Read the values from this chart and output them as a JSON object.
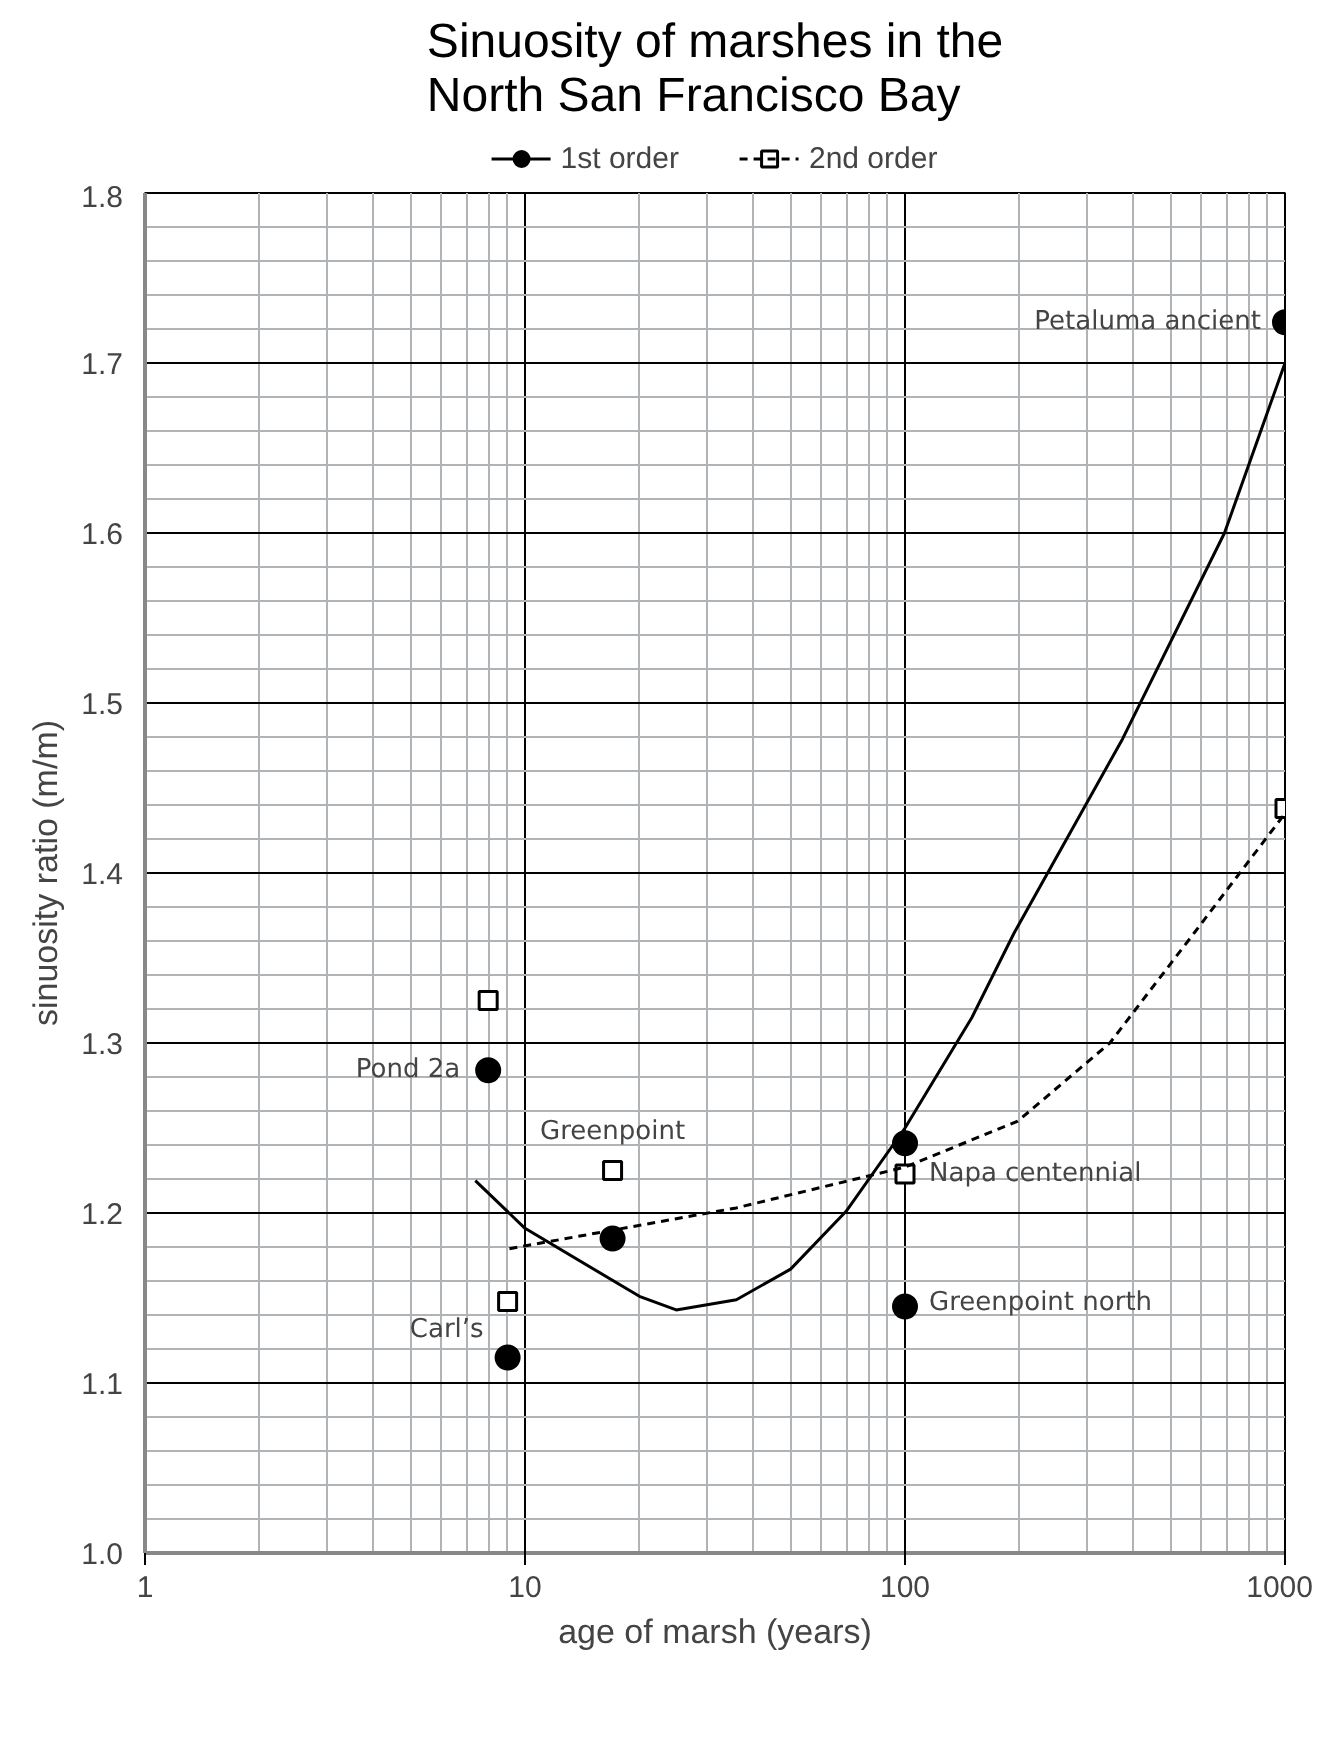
{
  "chart_data": {
    "type": "scatter",
    "title": "Sinuosity of marshes in the\nNorth San Francisco Bay",
    "xlabel": "age of marsh (years)",
    "ylabel": "sinuosity ratio (m/m)",
    "log": "x",
    "grid": true,
    "legend": "top",
    "xlim": [
      1,
      1000
    ],
    "xticks": [
      1,
      10,
      100,
      1000
    ],
    "ylim": [
      1.0,
      1.8
    ],
    "yticks": [
      {
        "value": 1.0,
        "label": "1.0"
      },
      1.1,
      1.2,
      1.3,
      1.4,
      1.5,
      1.6,
      1.7,
      1.8
    ],
    "series": [
      {
        "name": "1st order",
        "marker": "circle",
        "color": "#000000",
        "x": [
          8,
          9,
          17,
          100,
          100,
          1000
        ],
        "values": [
          1.284,
          1.115,
          1.185,
          1.241,
          1.145,
          1.724
        ]
      },
      {
        "name": "2nd order",
        "marker": "square",
        "color": "#000000",
        "x": [
          8,
          9,
          17,
          100,
          1000
        ],
        "values": [
          1.325,
          1.148,
          1.225,
          1.223,
          1.438
        ]
      },
      {
        "type": "line",
        "line_style": "solid",
        "color": "#000000",
        "x": [
          7.4,
          10,
          20,
          25,
          36,
          50,
          70,
          100,
          150,
          194,
          374,
          693,
          1000
        ],
        "values": [
          1.219,
          1.191,
          1.151,
          1.143,
          1.149,
          1.167,
          1.201,
          1.25,
          1.315,
          1.365,
          1.479,
          1.6,
          1.7
        ]
      },
      {
        "type": "line",
        "line_style": "dashed",
        "color": "#000000",
        "x": [
          9.1,
          36,
          100,
          198,
          346,
          578,
          1000
        ],
        "values": [
          1.179,
          1.203,
          1.227,
          1.254,
          1.3,
          1.365,
          1.435
        ]
      }
    ],
    "annotations": [
      {
        "text": "Pond 2a",
        "x": 8,
        "y": 1.284
      },
      {
        "text": "Carl’s",
        "x": 9,
        "y": 1.115
      },
      {
        "text": "Greenpoint",
        "x": 17,
        "y": 1.225
      },
      {
        "text": "Napa centennial",
        "x": 100,
        "y": 1.223
      },
      {
        "text": "Greenpoint north",
        "x": 100,
        "y": 1.145
      },
      {
        "text": "Petaluma ancient",
        "x": 1000,
        "y": 1.724
      }
    ]
  }
}
